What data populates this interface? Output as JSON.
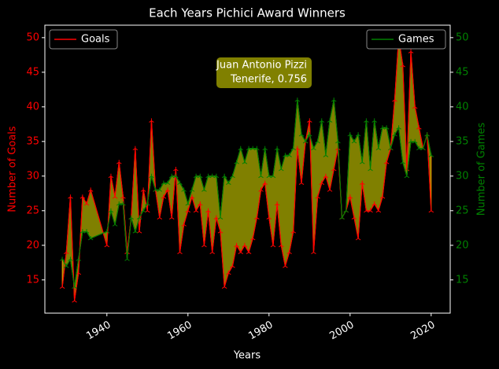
{
  "chart_data": {
    "type": "line",
    "title": "Each Years Pichici Award Winners",
    "x_label": "Years",
    "y_label": "Number of Goals",
    "y2_label": "Number of Games",
    "annotation": [
      "Juan Antonio Pizzi",
      "Tenerife, 0.756"
    ],
    "fill_color": "#808000",
    "x": [
      1929,
      1930,
      1931,
      1932,
      1933,
      1934,
      1935,
      1936,
      1940,
      1941,
      1942,
      1943,
      1944,
      1945,
      1946,
      1947,
      1948,
      1949,
      1950,
      1951,
      1952,
      1953,
      1954,
      1955,
      1956,
      1957,
      1958,
      1959,
      1960,
      1961,
      1962,
      1963,
      1964,
      1965,
      1966,
      1967,
      1968,
      1969,
      1970,
      1971,
      1972,
      1973,
      1974,
      1975,
      1976,
      1977,
      1978,
      1979,
      1980,
      1981,
      1982,
      1983,
      1984,
      1985,
      1986,
      1987,
      1988,
      1989,
      1990,
      1991,
      1992,
      1993,
      1994,
      1995,
      1996,
      1997,
      1998,
      1999,
      2000,
      2001,
      2002,
      2003,
      2004,
      2005,
      2006,
      2007,
      2008,
      2009,
      2010,
      2011,
      2012,
      2013,
      2014,
      2015,
      2016,
      2017,
      2018,
      2019,
      2020
    ],
    "series": [
      {
        "name": "Goals",
        "color": "#ff0000",
        "legend": "upper left",
        "values": [
          14,
          19,
          27,
          12,
          16,
          27,
          26,
          28,
          20,
          30,
          27,
          32,
          27,
          19,
          24,
          34,
          22,
          28,
          25,
          38,
          28,
          24,
          27,
          28,
          24,
          31,
          19,
          23,
          25,
          27,
          25,
          26,
          20,
          25,
          19,
          24,
          22,
          14,
          16,
          17,
          20,
          19,
          20,
          19,
          21,
          24,
          28,
          29,
          24,
          20,
          26,
          20,
          17,
          19,
          22,
          34,
          29,
          35,
          38,
          19,
          27,
          29,
          30,
          28,
          31,
          34,
          24,
          25,
          27,
          24,
          21,
          29,
          25,
          25,
          26,
          25,
          27,
          32,
          34,
          41,
          50,
          46,
          31,
          48,
          40,
          37,
          34,
          36,
          25
        ]
      },
      {
        "name": "Games",
        "color": "#008000",
        "legend": "upper right",
        "axis": "y2",
        "values": [
          18,
          17,
          18,
          14,
          18,
          22,
          22,
          21,
          22,
          25,
          23,
          26,
          26,
          18,
          24,
          22,
          24,
          25,
          26,
          30,
          28,
          28,
          29,
          29,
          30,
          30,
          29,
          28,
          26,
          28,
          30,
          30,
          28,
          30,
          30,
          30,
          24,
          30,
          29,
          30,
          32,
          34,
          32,
          34,
          34,
          34,
          30,
          34,
          30,
          30,
          34,
          31,
          33,
          33,
          34,
          41,
          36,
          35,
          36,
          34,
          35,
          38,
          33,
          38,
          41,
          35,
          24,
          25,
          36,
          35,
          36,
          32,
          38,
          31,
          38,
          34,
          37,
          37,
          34,
          36,
          37,
          32,
          30,
          35,
          35,
          34,
          34,
          36,
          33
        ]
      }
    ],
    "xlim": [
      1924.7,
      2024.7
    ],
    "xticks": [
      1940,
      1960,
      1980,
      2000,
      2020
    ],
    "ylim": [
      10.2,
      51.8
    ],
    "yticks": [
      15,
      20,
      25,
      30,
      35,
      40,
      45,
      50
    ],
    "y2lim": [
      10.2,
      51.8
    ],
    "y2ticks": [
      15,
      20,
      25,
      30,
      35,
      40,
      45,
      50
    ],
    "grid": false
  }
}
